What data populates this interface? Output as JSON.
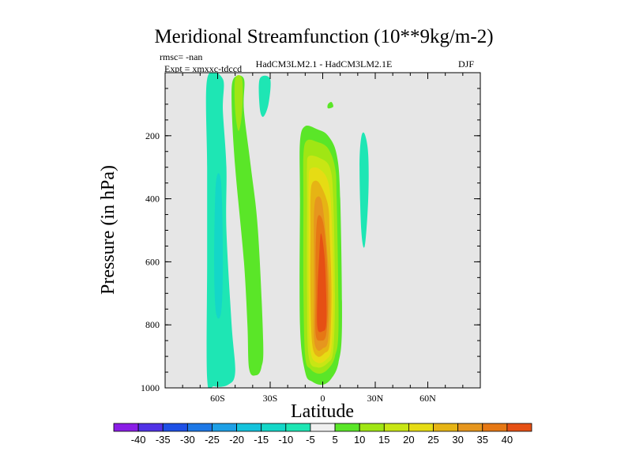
{
  "chart_data": {
    "type": "heatmap",
    "title": "Meridional Streamfunction (10**9kg/m-2)",
    "annotations": {
      "rmsc": "rmsc= -nan",
      "expt": "Expt = xmxxc-tdccd",
      "model": "HadCM3LM2.1 - HadCM3LM2.1E",
      "season": "DJF"
    },
    "xlabel": "Latitude",
    "ylabel": "Pressure (in hPa)",
    "xlim": [
      -90,
      90
    ],
    "ylim": [
      1000,
      0
    ],
    "x_ticks": [
      {
        "value": -60,
        "label": "60S"
      },
      {
        "value": -30,
        "label": "30S"
      },
      {
        "value": 0,
        "label": "0"
      },
      {
        "value": 30,
        "label": "30N"
      },
      {
        "value": 60,
        "label": "60N"
      }
    ],
    "y_ticks": [
      {
        "value": 200,
        "label": "200"
      },
      {
        "value": 400,
        "label": "400"
      },
      {
        "value": 600,
        "label": "600"
      },
      {
        "value": 800,
        "label": "800"
      },
      {
        "value": 1000,
        "label": "1000"
      }
    ],
    "background_color": "#e6e6e6",
    "colorbar": {
      "levels": [
        -40,
        -35,
        -30,
        -25,
        -20,
        -15,
        -10,
        -5,
        5,
        10,
        15,
        20,
        25,
        30,
        35,
        40
      ],
      "labels": [
        "-40",
        "-35",
        "-30",
        "-25",
        "-20",
        "-15",
        "-10",
        "-5",
        "5",
        "10",
        "15",
        "20",
        "25",
        "30",
        "35",
        "40"
      ],
      "colors": [
        "#8a1ee6",
        "#5032e6",
        "#1e50e6",
        "#1e78e6",
        "#1ea0e6",
        "#14c3dc",
        "#14d7c8",
        "#1ee6b4",
        "#f0f0f0",
        "#5ae628",
        "#a0e614",
        "#c8e614",
        "#e6dc14",
        "#e6b414",
        "#e6961e",
        "#e67814",
        "#e65014"
      ]
    },
    "features": [
      {
        "name": "southern-negative-band",
        "value_range": [
          -15,
          -5
        ],
        "polygon": [
          [
            -66,
            20
          ],
          [
            -57,
            20
          ],
          [
            -57,
            120
          ],
          [
            -55,
            300
          ],
          [
            -55,
            500
          ],
          [
            -52,
            800
          ],
          [
            -50,
            950
          ],
          [
            -54,
            990
          ],
          [
            -62,
            995
          ],
          [
            -66,
            970
          ],
          [
            -66,
            600
          ],
          [
            -66,
            300
          ]
        ]
      },
      {
        "name": "southern-negative-core",
        "value_range": [
          -15,
          -10
        ],
        "polygon": [
          [
            -61,
            350
          ],
          [
            -58,
            350
          ],
          [
            -57,
            600
          ],
          [
            -58,
            760
          ],
          [
            -61,
            760
          ],
          [
            -62,
            600
          ]
        ]
      },
      {
        "name": "southern-positive-band",
        "value_range": [
          5,
          10
        ],
        "polygon": [
          [
            -51,
            20
          ],
          [
            -45,
            20
          ],
          [
            -45,
            120
          ],
          [
            -41,
            300
          ],
          [
            -37,
            500
          ],
          [
            -34,
            850
          ],
          [
            -35,
            935
          ],
          [
            -38,
            960
          ],
          [
            -42,
            940
          ],
          [
            -43,
            800
          ],
          [
            -45,
            600
          ],
          [
            -50,
            300
          ],
          [
            -52,
            100
          ]
        ]
      },
      {
        "name": "southern-positive-core",
        "value_range": [
          10,
          20
        ],
        "polygon": [
          [
            -50,
            20
          ],
          [
            -46,
            20
          ],
          [
            -46,
            120
          ],
          [
            -48,
            185
          ],
          [
            -50,
            120
          ]
        ]
      },
      {
        "name": "upper-negative-cell",
        "value_range": [
          -10,
          -5
        ],
        "polygon": [
          [
            -36,
            20
          ],
          [
            -30,
            20
          ],
          [
            -31,
            100
          ],
          [
            -34,
            140
          ],
          [
            -36,
            110
          ]
        ]
      },
      {
        "name": "hadley-cell",
        "value_range": [
          5,
          40
        ],
        "contours": [
          {
            "value": 5,
            "ring": [
              [
                -10,
                170
              ],
              [
                -3,
                180
              ],
              [
                3,
                200
              ],
              [
                8,
                260
              ],
              [
                10,
                400
              ],
              [
                11,
                800
              ],
              [
                9,
                920
              ],
              [
                5,
                970
              ],
              [
                0,
                990
              ],
              [
                -6,
                980
              ],
              [
                -10,
                950
              ],
              [
                -13,
                800
              ],
              [
                -13,
                400
              ],
              [
                -13,
                220
              ]
            ]
          },
          {
            "value": 10,
            "ring": [
              [
                -9,
                215
              ],
              [
                -3,
                220
              ],
              [
                3,
                240
              ],
              [
                7,
                300
              ],
              [
                8,
                400
              ],
              [
                9,
                800
              ],
              [
                7,
                900
              ],
              [
                3,
                940
              ],
              [
                -2,
                955
              ],
              [
                -7,
                940
              ],
              [
                -10,
                900
              ],
              [
                -11,
                700
              ],
              [
                -11,
                400
              ],
              [
                -11,
                260
              ]
            ]
          },
          {
            "value": 15,
            "ring": [
              [
                -8,
                265
              ],
              [
                -2,
                270
              ],
              [
                4,
                300
              ],
              [
                6,
                400
              ],
              [
                7,
                700
              ],
              [
                6,
                880
              ],
              [
                3,
                920
              ],
              [
                -3,
                935
              ],
              [
                -8,
                900
              ],
              [
                -9,
                700
              ],
              [
                -9,
                400
              ],
              [
                -9,
                300
              ]
            ]
          },
          {
            "value": 20,
            "ring": [
              [
                -7,
                305
              ],
              [
                -2,
                305
              ],
              [
                3,
                345
              ],
              [
                5,
                450
              ],
              [
                6,
                700
              ],
              [
                5,
                870
              ],
              [
                2,
                910
              ],
              [
                -3,
                920
              ],
              [
                -7,
                880
              ],
              [
                -8,
                700
              ],
              [
                -8,
                450
              ],
              [
                -8,
                340
              ]
            ]
          },
          {
            "value": 25,
            "ring": [
              [
                -6,
                350
              ],
              [
                -2,
                350
              ],
              [
                3,
                420
              ],
              [
                4,
                520
              ],
              [
                5,
                700
              ],
              [
                4,
                860
              ],
              [
                1,
                890
              ],
              [
                -3,
                900
              ],
              [
                -6,
                860
              ],
              [
                -7,
                700
              ],
              [
                -7,
                500
              ],
              [
                -7,
                400
              ]
            ]
          },
          {
            "value": 30,
            "ring": [
              [
                -4,
                400
              ],
              [
                -1,
                400
              ],
              [
                1,
                470
              ],
              [
                3,
                600
              ],
              [
                4,
                720
              ],
              [
                3,
                850
              ],
              [
                0,
                875
              ],
              [
                -3,
                880
              ],
              [
                -5,
                840
              ],
              [
                -5,
                700
              ],
              [
                -5,
                550
              ],
              [
                -5,
                450
              ]
            ]
          },
          {
            "value": 35,
            "ring": [
              [
                -3,
                460
              ],
              [
                0,
                470
              ],
              [
                2,
                560
              ],
              [
                3,
                720
              ],
              [
                2,
                830
              ],
              [
                -1,
                850
              ],
              [
                -4,
                830
              ],
              [
                -4,
                700
              ],
              [
                -4,
                560
              ]
            ]
          },
          {
            "value": 40,
            "ring": [
              [
                -1,
                510
              ],
              [
                1,
                580
              ],
              [
                2,
                700
              ],
              [
                2,
                800
              ],
              [
                0,
                820
              ],
              [
                -3,
                810
              ],
              [
                -3,
                700
              ],
              [
                -2,
                580
              ]
            ]
          }
        ]
      },
      {
        "name": "small-positive-blob",
        "value_range": [
          5,
          10
        ],
        "polygon": [
          [
            3,
            100
          ],
          [
            5,
            93
          ],
          [
            6,
            108
          ],
          [
            3,
            113
          ]
        ]
      },
      {
        "name": "northern-negative-strip",
        "value_range": [
          -10,
          -5
        ],
        "polygon": [
          [
            22,
            205
          ],
          [
            24,
            195
          ],
          [
            26,
            260
          ],
          [
            26,
            400
          ],
          [
            24,
            550
          ],
          [
            22,
            500
          ],
          [
            21,
            300
          ]
        ]
      }
    ]
  }
}
